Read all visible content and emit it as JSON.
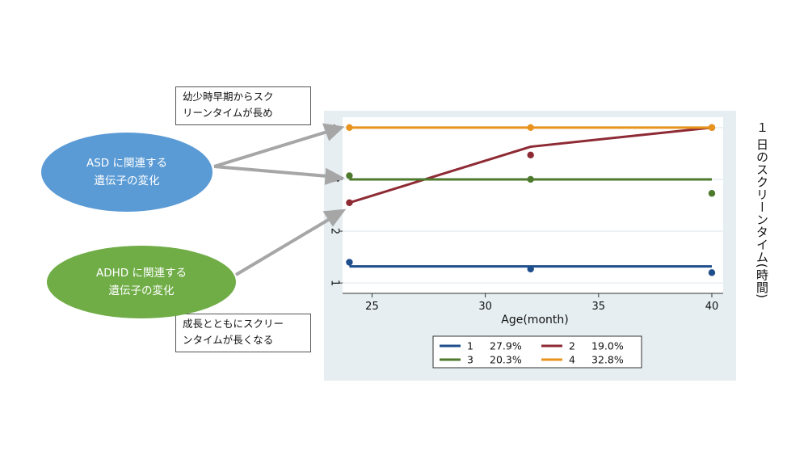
{
  "callouts": {
    "asd_note": [
      "幼少時早期からスク",
      "リーンタイムが長め"
    ],
    "adhd_note": [
      "成長とともにスクリー",
      "ンタイムが長くなる"
    ]
  },
  "ellipses": {
    "asd": {
      "lines": [
        "ASD に関連する",
        "遺伝子の変化"
      ],
      "color": "#5B9BD5"
    },
    "adhd": {
      "lines": [
        "ADHD に関連する",
        "遺伝子の変化"
      ],
      "color": "#70AD47"
    }
  },
  "chart_data": {
    "type": "line",
    "xlabel": "Age(month)",
    "ylabel": "１ 日のスクリーンタイム(時間)",
    "x_ticks": [
      25,
      30,
      35,
      40
    ],
    "y_ticks": [
      1,
      2,
      3,
      4
    ],
    "xlim": [
      23.7,
      40.5
    ],
    "ylim": [
      0.8,
      4.2
    ],
    "grid": true,
    "legend_position": "bottom",
    "series": [
      {
        "name": "1",
        "percent": "27.9%",
        "color": "#1F4E8C",
        "line": {
          "x": [
            24,
            40
          ],
          "y": [
            1.32,
            1.32
          ]
        },
        "points": {
          "x": [
            24,
            32,
            40
          ],
          "y": [
            1.4,
            1.27,
            1.2
          ]
        }
      },
      {
        "name": "2",
        "percent": "19.0%",
        "color": "#8E2A34",
        "line": {
          "x": [
            24,
            32,
            40
          ],
          "y": [
            2.55,
            3.63,
            4.0
          ]
        },
        "points": {
          "x": [
            24,
            32,
            40
          ],
          "y": [
            2.55,
            3.47,
            4.0
          ]
        }
      },
      {
        "name": "3",
        "percent": "20.3%",
        "color": "#4E7A2E",
        "line": {
          "x": [
            24,
            40
          ],
          "y": [
            3.0,
            3.0
          ]
        },
        "points": {
          "x": [
            24,
            32,
            40
          ],
          "y": [
            3.07,
            3.0,
            2.73
          ]
        }
      },
      {
        "name": "4",
        "percent": "32.8%",
        "color": "#E8931E",
        "line": {
          "x": [
            24,
            40
          ],
          "y": [
            4.0,
            4.0
          ]
        },
        "points": {
          "x": [
            24,
            32,
            40
          ],
          "y": [
            4.0,
            4.0,
            4.0
          ]
        }
      }
    ]
  }
}
